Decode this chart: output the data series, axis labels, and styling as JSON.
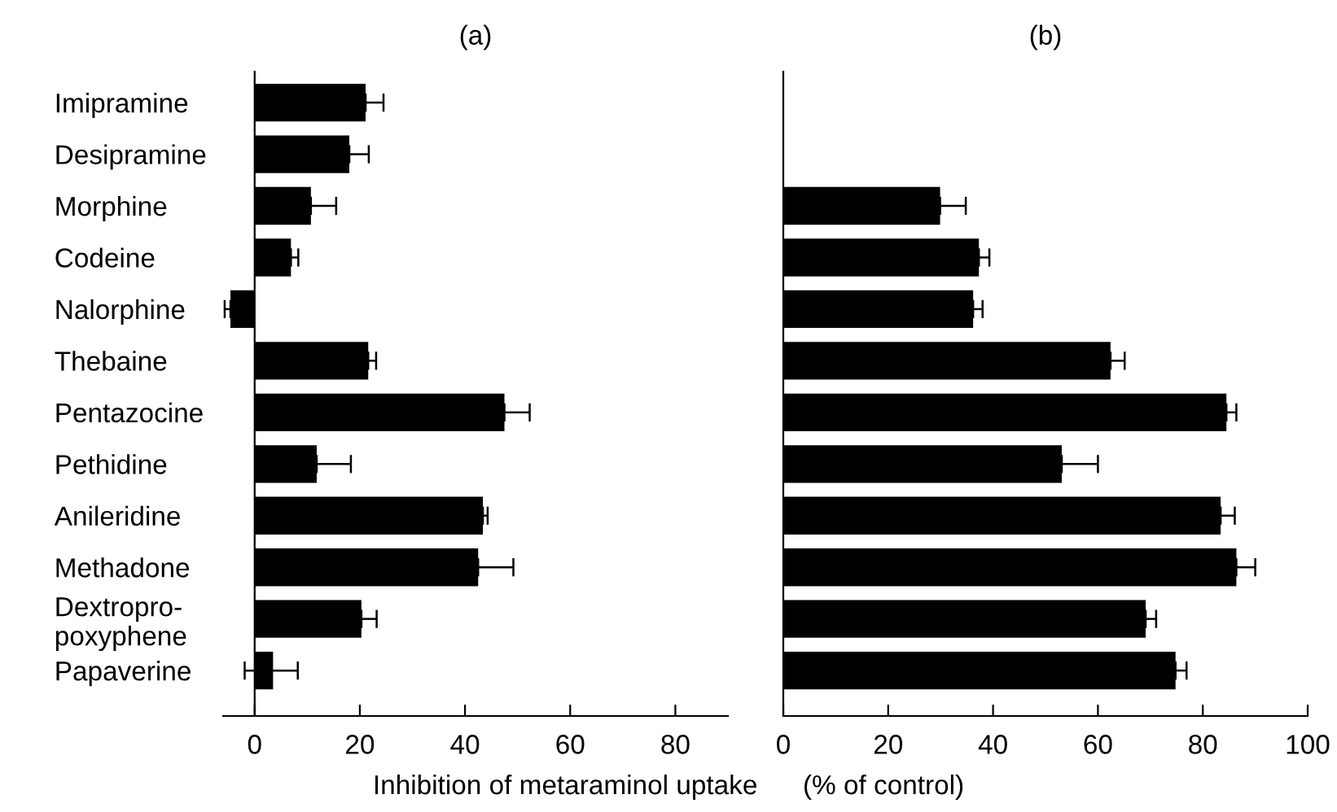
{
  "chart_data": [
    {
      "type": "bar",
      "orientation": "horizontal",
      "title": "(a)",
      "xlabel": "Inhibition of metaraminol uptake      (% of control)",
      "categories": [
        "Imipramine",
        "Desipramine",
        "Morphine",
        "Codeine",
        "Nalorphine",
        "Thebaine",
        "Pentazocine",
        "Pethidine",
        "Anileridine",
        "Methadone",
        "Dextropro-\npoxyphene",
        "Papaverine"
      ],
      "series": [
        {
          "color": "#000000",
          "values": [
            21.1,
            18.0,
            10.7,
            6.9,
            -4.6,
            21.6,
            47.5,
            11.8,
            43.4,
            42.5,
            20.3,
            3.5
          ],
          "errors": [
            [
              21.1,
              24.5
            ],
            [
              18.0,
              21.7
            ],
            [
              10.7,
              15.5
            ],
            [
              6.9,
              8.3
            ],
            [
              -5.7,
              -4.6
            ],
            [
              21.6,
              23.1
            ],
            [
              47.5,
              52.3
            ],
            [
              11.8,
              18.3
            ],
            [
              43.4,
              44.3
            ],
            [
              42.5,
              49.2
            ],
            [
              20.3,
              23.2
            ],
            [
              -1.9,
              8.2
            ]
          ]
        }
      ],
      "xlim": [
        -6,
        90
      ],
      "xticks": [
        0,
        20,
        40,
        60,
        80
      ],
      "grid": false,
      "legend": false
    },
    {
      "type": "bar",
      "orientation": "horizontal",
      "title": "(b)",
      "categories": [
        null,
        null,
        null,
        null,
        null,
        null,
        null,
        null,
        null,
        null,
        null,
        null
      ],
      "series": [
        {
          "color": "#000000",
          "values": [
            null,
            null,
            29.9,
            37.3,
            36.2,
            62.4,
            84.5,
            53.1,
            83.4,
            86.4,
            69.1,
            74.8
          ],
          "errors": [
            null,
            null,
            [
              29.9,
              34.8
            ],
            [
              37.3,
              39.3
            ],
            [
              36.2,
              38.0
            ],
            [
              62.4,
              65.1
            ],
            [
              84.5,
              86.4
            ],
            [
              53.1,
              60.0
            ],
            [
              83.4,
              86.1
            ],
            [
              86.4,
              90.0
            ],
            [
              69.1,
              71.1
            ],
            [
              74.8,
              76.9
            ]
          ]
        }
      ],
      "xlim": [
        0,
        100
      ],
      "xticks": [
        0,
        20,
        40,
        60,
        80,
        100
      ],
      "tick_labels": "x",
      "grid": false,
      "legend": false
    }
  ]
}
